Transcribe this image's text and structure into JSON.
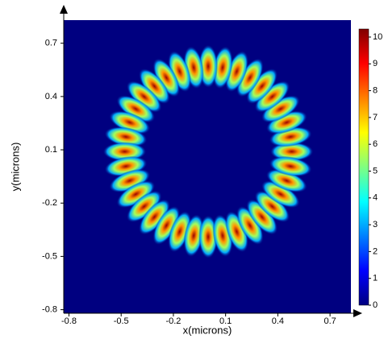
{
  "chart_data": {
    "type": "heatmap",
    "x_label": "x(microns)",
    "y_label": "y(microns)",
    "x": [
      0.48,
      0.473,
      0.451,
      0.416,
      0.368,
      0.309,
      0.24,
      0.164,
      0.083,
      0,
      -0.083,
      -0.164,
      -0.24,
      -0.309,
      -0.368,
      -0.416,
      -0.451,
      -0.473,
      -0.48,
      -0.473,
      -0.451,
      -0.416,
      -0.368,
      -0.309,
      -0.24,
      -0.164,
      -0.083,
      0,
      0.083,
      0.164,
      0.24,
      0.309,
      0.368,
      0.416,
      0.451,
      0.473
    ],
    "y": [
      0.09,
      0.173,
      0.254,
      0.33,
      0.399,
      0.458,
      0.506,
      0.541,
      0.563,
      0.57,
      0.563,
      0.541,
      0.506,
      0.458,
      0.399,
      0.33,
      0.254,
      0.173,
      0.09,
      0.007,
      -0.074,
      -0.15,
      -0.219,
      -0.278,
      -0.326,
      -0.361,
      -0.383,
      -0.39,
      -0.383,
      -0.361,
      -0.326,
      -0.278,
      -0.219,
      -0.15,
      -0.074,
      0.007
    ],
    "values": [
      10,
      10,
      10,
      10,
      10,
      10,
      10,
      10,
      10,
      10,
      10,
      10,
      10,
      10,
      10,
      10,
      10,
      10,
      10,
      10,
      10,
      10,
      10,
      10,
      10,
      10,
      10,
      10,
      10,
      10,
      10,
      10,
      10,
      10,
      10,
      10
    ],
    "xlim": [
      -0.83,
      0.82
    ],
    "ylim": [
      -0.82,
      0.83
    ],
    "xticks": [
      -0.8,
      -0.5,
      -0.2,
      0.1,
      0.4,
      0.7
    ],
    "yticks": [
      -0.8,
      -0.5,
      -0.2,
      0.1,
      0.4,
      0.7
    ],
    "zlim": [
      0,
      10.3
    ],
    "zticks": [
      0,
      1,
      2,
      3,
      4,
      5,
      6,
      7,
      8,
      9,
      10
    ],
    "colormap": "jet"
  }
}
